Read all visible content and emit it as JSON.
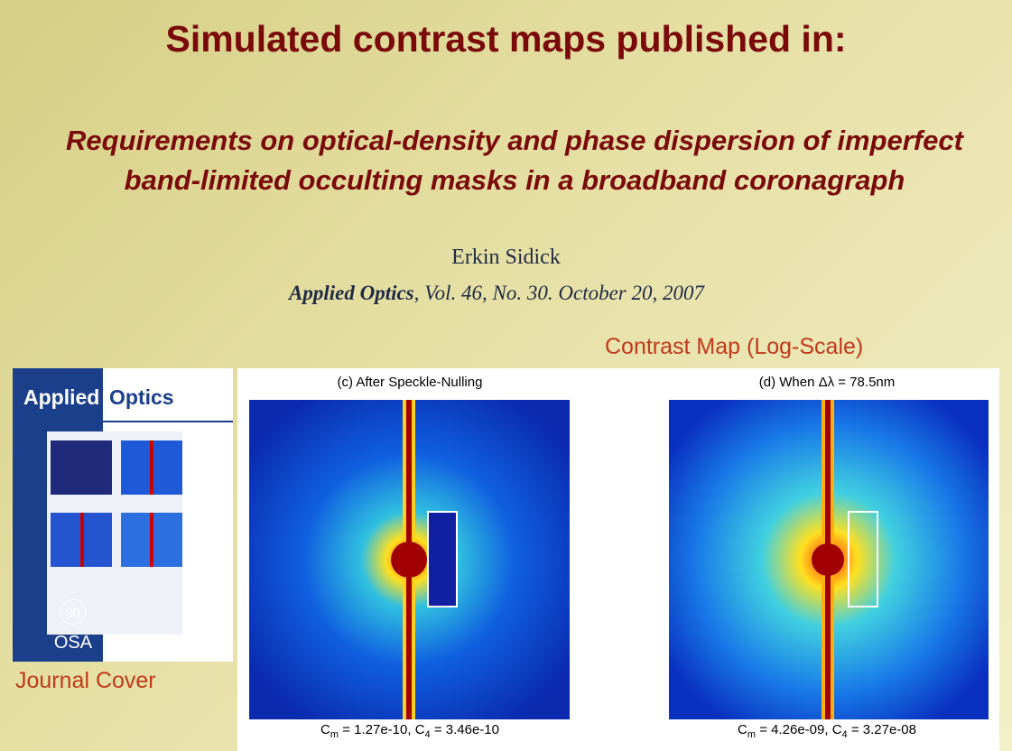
{
  "header": {
    "title": "Simulated contrast maps published in:"
  },
  "paper": {
    "title": "Requirements on optical-density and phase dispersion of imperfect band-limited occulting masks in a broadband coronagraph",
    "author": "Erkin Sidick",
    "journal": "Applied Optics",
    "citation": ", Vol. 46, No. 30. October 20, 2007"
  },
  "labels": {
    "contrast_map": "Contrast Map (Log-Scale)",
    "journal_cover": "Journal Cover"
  },
  "cover": {
    "title_1": "Applied",
    "title_2": "Optics",
    "anniversary": "90",
    "logo": "OSA"
  },
  "panels": [
    {
      "title": "(c) After Speckle-Nulling",
      "caption": [
        "C",
        "m",
        " = 1.27e-10, C",
        "4",
        " = 3.46e-10"
      ]
    },
    {
      "title": "(d) When Δλ = 78.5nm",
      "caption": [
        "C",
        "m",
        " = 4.26e-09, C",
        "4",
        " = 3.27e-08"
      ]
    }
  ]
}
